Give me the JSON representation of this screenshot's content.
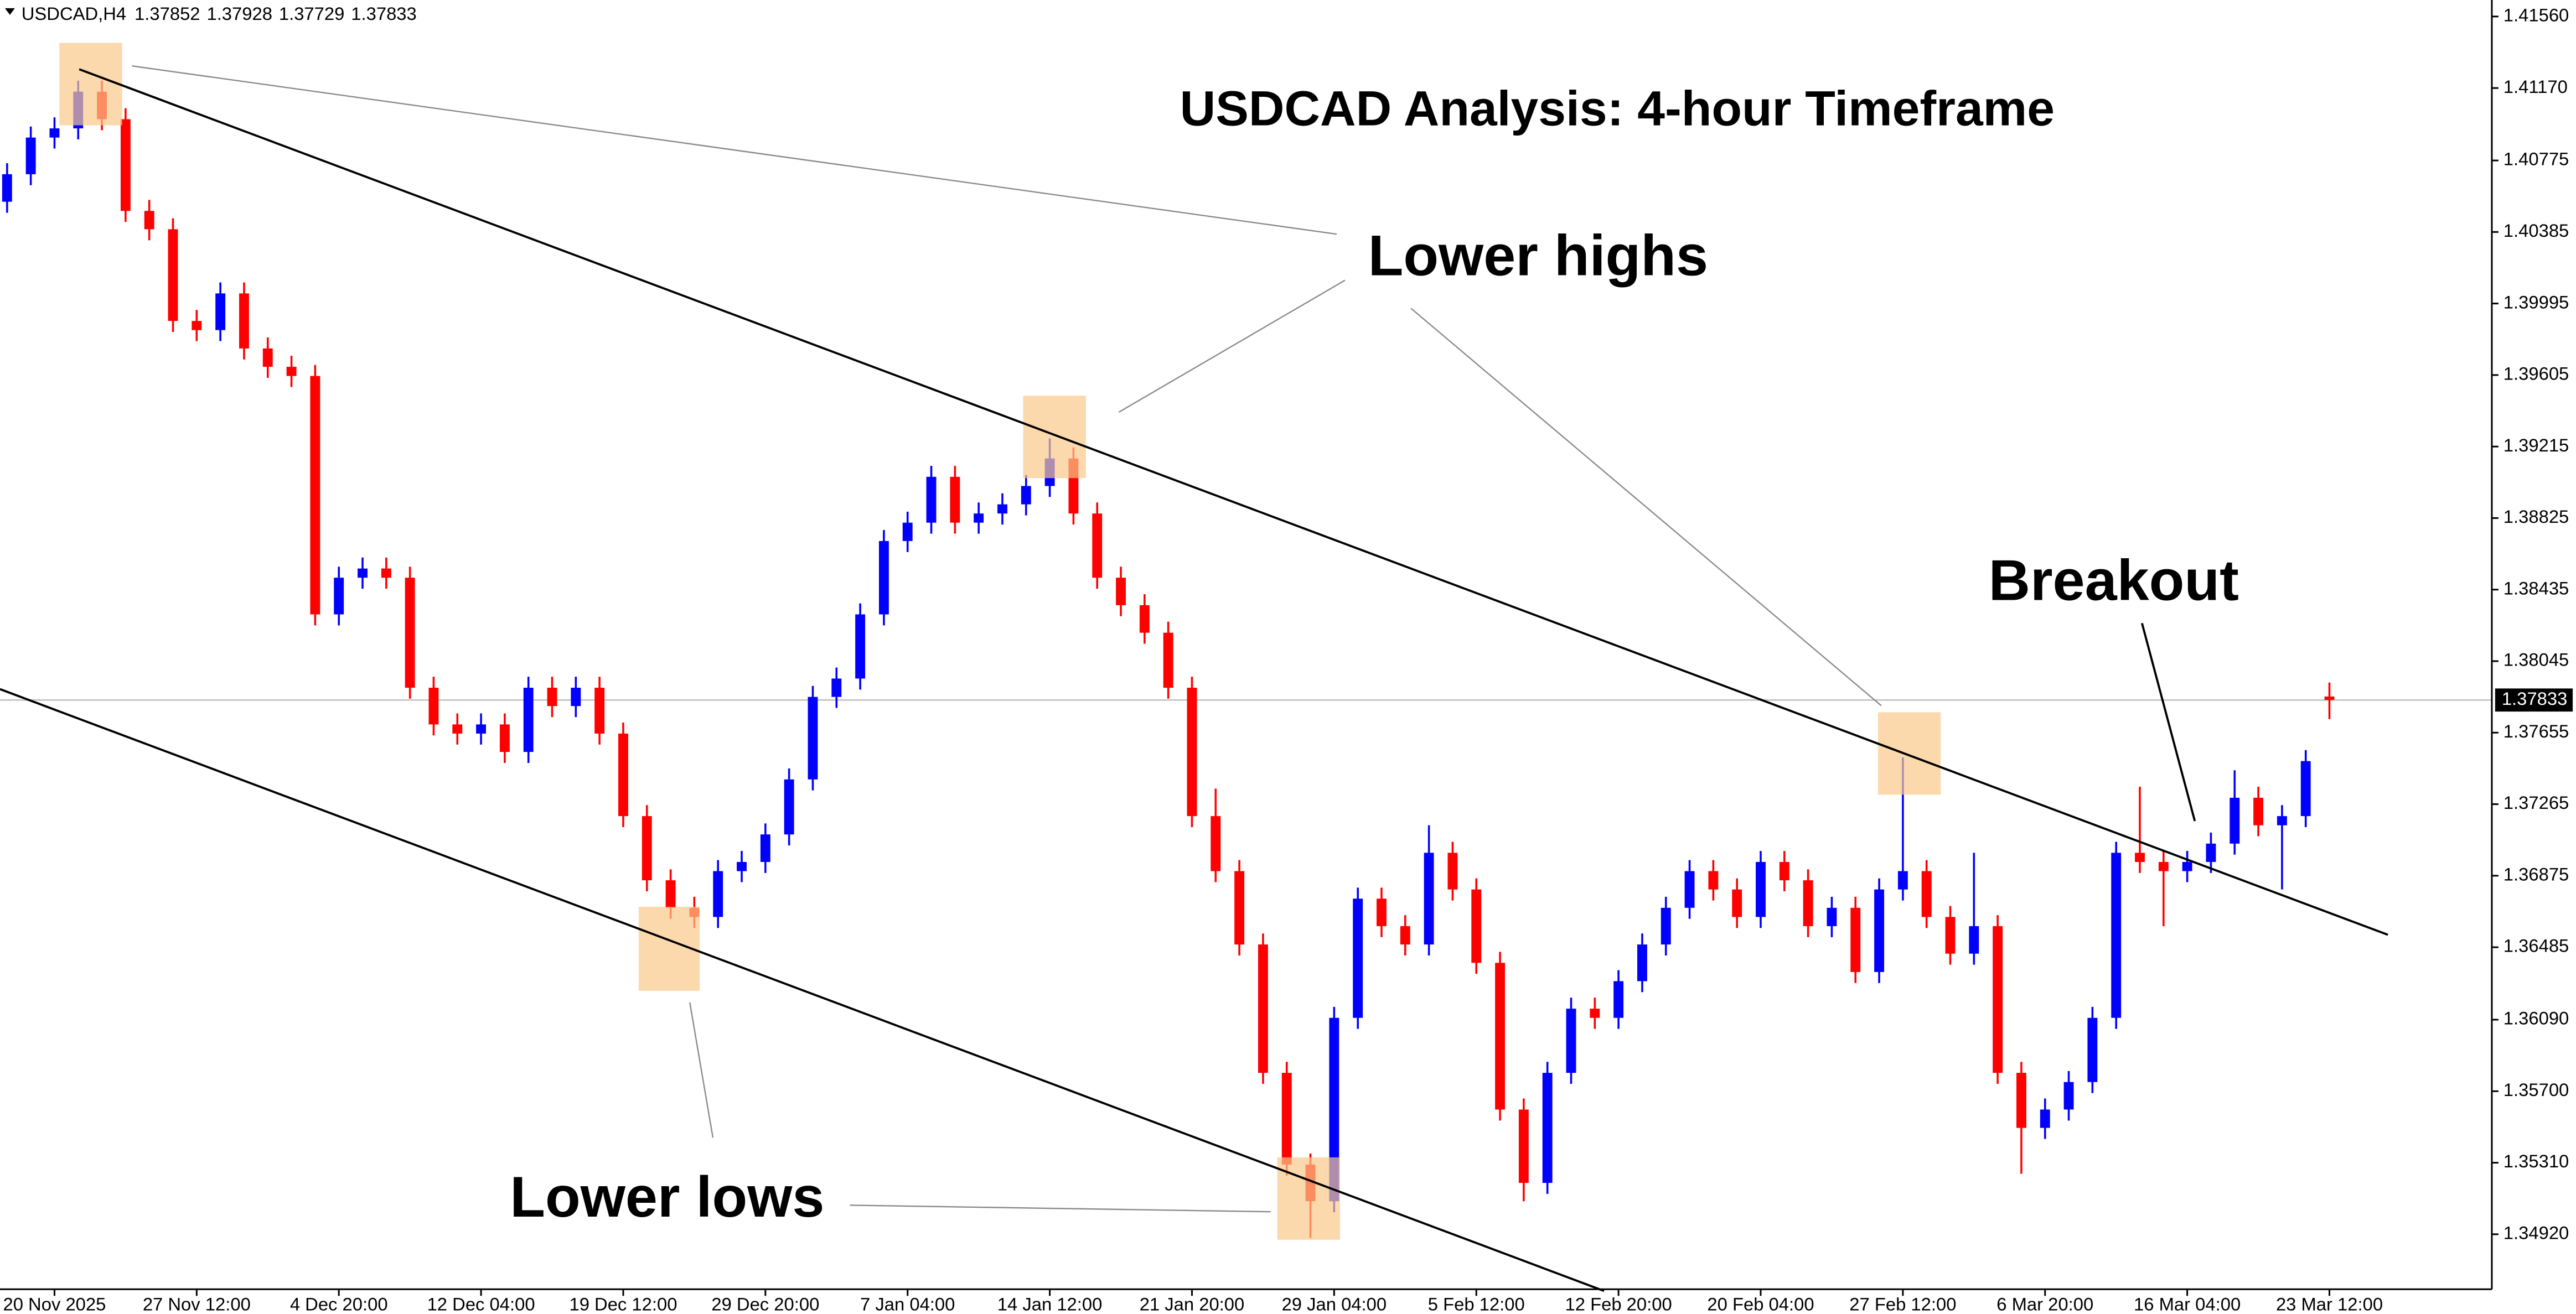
{
  "chart_data": {
    "type": "candlestick",
    "title": "USDCAD Analysis: 4-hour Timeframe",
    "symbol": "USDCAD,H4",
    "header_ohlc": [
      1.37852,
      1.37928,
      1.37729,
      1.37833
    ],
    "current_price": 1.37833,
    "annotations": [
      "Lower highs",
      "Lower lows",
      "Breakout"
    ],
    "up_color": "#0000ff",
    "down_color": "#ff0000",
    "grid": false,
    "ylim": [
      1.3462,
      1.4165
    ],
    "yticks": [
      {
        "value": 1.4156,
        "label": "1.41560"
      },
      {
        "value": 1.4117,
        "label": "1.41170"
      },
      1.40775,
      1.40385,
      1.39995,
      1.39605,
      1.39215,
      1.38825,
      1.38435,
      1.38045,
      1.37655,
      1.37265,
      1.36875,
      1.36485,
      {
        "value": 1.3609,
        "label": "1.36090"
      },
      {
        "value": 1.357,
        "label": "1.35700"
      },
      {
        "value": 1.3531,
        "label": "1.35310"
      },
      {
        "value": 1.3492,
        "label": "1.34920"
      }
    ],
    "categories": [
      null,
      null,
      "20 Nov 2025",
      null,
      null,
      null,
      null,
      null,
      "27 Nov 12:00",
      null,
      null,
      null,
      null,
      null,
      "4 Dec 20:00",
      null,
      null,
      null,
      null,
      null,
      "12 Dec 04:00",
      null,
      null,
      null,
      null,
      null,
      "19 Dec 12:00",
      null,
      null,
      null,
      null,
      null,
      "29 Dec 20:00",
      null,
      null,
      null,
      null,
      null,
      "7 Jan 04:00",
      null,
      null,
      null,
      null,
      null,
      "14 Jan 12:00",
      null,
      null,
      null,
      null,
      null,
      "21 Jan 20:00",
      null,
      null,
      null,
      null,
      null,
      "29 Jan 04:00",
      null,
      null,
      null,
      null,
      null,
      "5 Feb 12:00",
      null,
      null,
      null,
      null,
      null,
      "12 Feb 20:00",
      null,
      null,
      null,
      null,
      null,
      "20 Feb 04:00",
      null,
      null,
      null,
      null,
      null,
      "27 Feb 12:00",
      null,
      null,
      null,
      null,
      null,
      "6 Mar 20:00",
      null,
      null,
      null,
      null,
      null,
      "16 Mar 04:00",
      null,
      null,
      null,
      null,
      null,
      "23 Mar 12:00"
    ],
    "open": [
      1.4055,
      1.407,
      1.409,
      1.4095,
      1.4115,
      1.41,
      1.405,
      1.404,
      1.399,
      1.3985,
      1.4005,
      1.3975,
      1.3965,
      1.396,
      1.383,
      1.385,
      1.3855,
      1.385,
      1.379,
      1.377,
      1.3765,
      1.377,
      1.3755,
      1.379,
      1.378,
      1.379,
      1.3765,
      1.372,
      1.3685,
      1.367,
      1.3665,
      1.369,
      1.3695,
      1.371,
      1.374,
      1.3785,
      1.3795,
      1.383,
      1.387,
      1.388,
      1.3905,
      1.388,
      1.3885,
      1.389,
      1.39,
      1.3915,
      1.3885,
      1.385,
      1.3835,
      1.382,
      1.379,
      1.372,
      1.369,
      1.365,
      1.358,
      1.353,
      1.351,
      1.361,
      1.3675,
      1.366,
      1.365,
      1.37,
      1.368,
      1.364,
      1.356,
      1.352,
      1.358,
      1.3615,
      1.361,
      1.363,
      1.365,
      1.367,
      1.369,
      1.368,
      1.3665,
      1.3695,
      1.3685,
      1.366,
      1.367,
      1.3635,
      1.368,
      1.369,
      1.3665,
      1.3645,
      1.366,
      1.358,
      1.355,
      1.356,
      1.3575,
      1.361,
      1.37,
      1.3695,
      1.369,
      1.3695,
      1.3705,
      1.373,
      1.3715,
      1.372,
      1.37852
    ],
    "high": [
      1.4076,
      1.4096,
      1.4101,
      1.4121,
      1.4121,
      1.4106,
      1.4056,
      1.4046,
      1.3996,
      1.4011,
      1.4011,
      1.3981,
      1.3971,
      1.3966,
      1.3856,
      1.3861,
      1.3861,
      1.3856,
      1.3796,
      1.3776,
      1.3776,
      1.3776,
      1.3796,
      1.3796,
      1.3796,
      1.3796,
      1.3771,
      1.3726,
      1.3691,
      1.3676,
      1.3696,
      1.3701,
      1.3716,
      1.3746,
      1.3791,
      1.3801,
      1.3836,
      1.3876,
      1.3886,
      1.3911,
      1.3911,
      1.3891,
      1.3896,
      1.3906,
      1.3926,
      1.3921,
      1.3891,
      1.3856,
      1.3841,
      1.3826,
      1.3796,
      1.3735,
      1.3696,
      1.3656,
      1.3586,
      1.3536,
      1.3616,
      1.3681,
      1.3681,
      1.3666,
      1.3715,
      1.3706,
      1.3686,
      1.3646,
      1.3566,
      1.3586,
      1.3621,
      1.3621,
      1.3636,
      1.3656,
      1.3676,
      1.3696,
      1.3696,
      1.3686,
      1.3701,
      1.3701,
      1.3691,
      1.3676,
      1.3676,
      1.3686,
      1.3752,
      1.3696,
      1.3671,
      1.37,
      1.3666,
      1.3586,
      1.3566,
      1.3581,
      1.3616,
      1.3706,
      1.3736,
      1.3701,
      1.3701,
      1.3711,
      1.3745,
      1.3736,
      1.3726,
      1.3756,
      1.37928
    ],
    "low": [
      1.4049,
      1.4064,
      1.4084,
      1.4089,
      1.4094,
      1.4044,
      1.4034,
      1.3984,
      1.3979,
      1.3979,
      1.3969,
      1.3959,
      1.3954,
      1.3824,
      1.3824,
      1.3844,
      1.3844,
      1.3784,
      1.3764,
      1.3759,
      1.3759,
      1.3749,
      1.3749,
      1.3774,
      1.3774,
      1.3759,
      1.3714,
      1.3679,
      1.3664,
      1.3659,
      1.3659,
      1.3684,
      1.3689,
      1.3704,
      1.3734,
      1.3779,
      1.3789,
      1.3824,
      1.3864,
      1.3874,
      1.3874,
      1.3874,
      1.3879,
      1.3884,
      1.3894,
      1.3879,
      1.3844,
      1.3829,
      1.3814,
      1.3784,
      1.3714,
      1.3684,
      1.3644,
      1.3574,
      1.3524,
      1.349,
      1.3504,
      1.3604,
      1.3654,
      1.3644,
      1.3644,
      1.3674,
      1.3634,
      1.3554,
      1.351,
      1.3514,
      1.3574,
      1.3604,
      1.3604,
      1.3624,
      1.3644,
      1.3664,
      1.3674,
      1.3659,
      1.3659,
      1.3679,
      1.3654,
      1.3654,
      1.3629,
      1.3629,
      1.3674,
      1.3659,
      1.3639,
      1.3639,
      1.3574,
      1.3525,
      1.3544,
      1.3554,
      1.3569,
      1.3604,
      1.3689,
      1.366,
      1.3684,
      1.3689,
      1.3699,
      1.3709,
      1.368,
      1.3714,
      1.37729
    ],
    "close": [
      1.407,
      1.409,
      1.4095,
      1.4115,
      1.41,
      1.405,
      1.404,
      1.399,
      1.3985,
      1.4005,
      1.3975,
      1.3965,
      1.396,
      1.383,
      1.385,
      1.3855,
      1.385,
      1.379,
      1.377,
      1.3765,
      1.377,
      1.3755,
      1.379,
      1.378,
      1.379,
      1.3765,
      1.372,
      1.3685,
      1.367,
      1.3665,
      1.369,
      1.3695,
      1.371,
      1.374,
      1.3785,
      1.3795,
      1.383,
      1.387,
      1.388,
      1.3905,
      1.388,
      1.3885,
      1.389,
      1.39,
      1.3915,
      1.3885,
      1.385,
      1.3835,
      1.382,
      1.379,
      1.372,
      1.369,
      1.365,
      1.358,
      1.353,
      1.351,
      1.361,
      1.3675,
      1.366,
      1.365,
      1.37,
      1.368,
      1.364,
      1.356,
      1.352,
      1.358,
      1.3615,
      1.361,
      1.363,
      1.365,
      1.367,
      1.369,
      1.368,
      1.3665,
      1.3695,
      1.3685,
      1.366,
      1.367,
      1.3635,
      1.368,
      1.369,
      1.3665,
      1.3645,
      1.366,
      1.358,
      1.355,
      1.356,
      1.3575,
      1.361,
      1.37,
      1.3695,
      1.369,
      1.3695,
      1.3705,
      1.373,
      1.3715,
      1.372,
      1.375,
      1.37833
    ]
  }
}
